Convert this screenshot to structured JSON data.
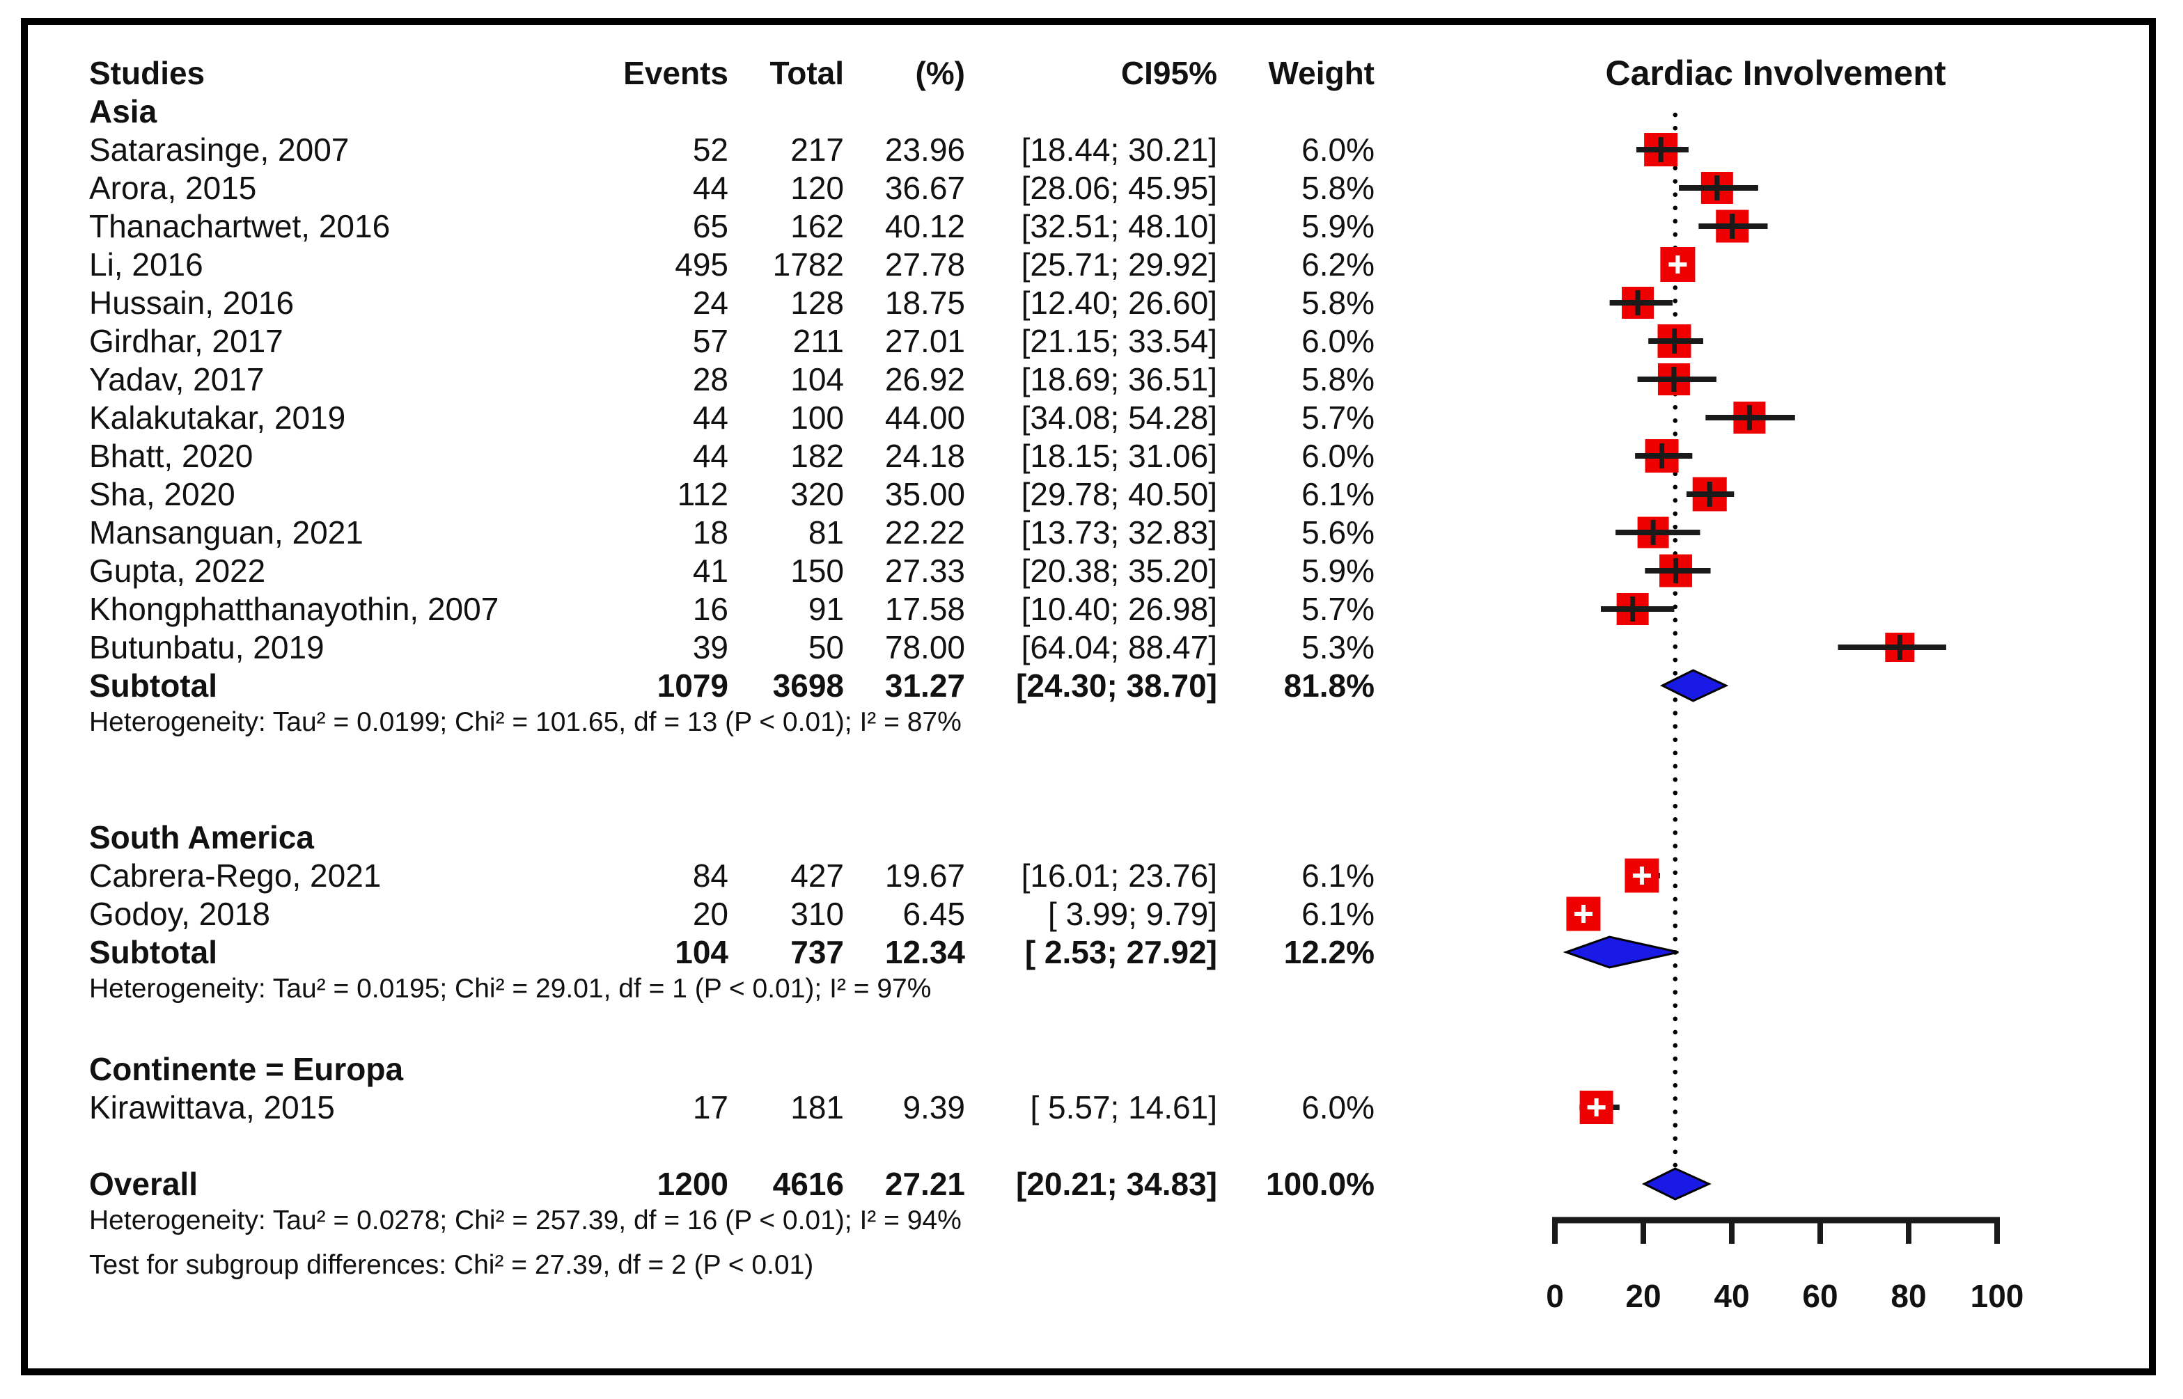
{
  "chart_data": {
    "type": "forest",
    "title": "Cardiac Involvement",
    "columns": {
      "studies": "Studies",
      "events": "Events",
      "total": "Total",
      "pct": "(%)",
      "ci": "CI95%",
      "weight": "Weight"
    },
    "axis": {
      "min": 0,
      "max": 100,
      "ticks": [
        0,
        20,
        40,
        60,
        80,
        100
      ],
      "reference_value": 27.21
    },
    "groups": [
      {
        "label": "Asia",
        "studies": [
          {
            "name": "Satarasinge, 2007",
            "events": "52",
            "total": "217",
            "pct": "23.96",
            "ci": "[18.44; 30.21]",
            "weight": "6.0%",
            "est": 23.96,
            "lo": 18.44,
            "hi": 30.21,
            "w": 6.0
          },
          {
            "name": "Arora, 2015",
            "events": "44",
            "total": "120",
            "pct": "36.67",
            "ci": "[28.06; 45.95]",
            "weight": "5.8%",
            "est": 36.67,
            "lo": 28.06,
            "hi": 45.95,
            "w": 5.8
          },
          {
            "name": "Thanachartwet, 2016",
            "events": "65",
            "total": "162",
            "pct": "40.12",
            "ci": "[32.51; 48.10]",
            "weight": "5.9%",
            "est": 40.12,
            "lo": 32.51,
            "hi": 48.1,
            "w": 5.9
          },
          {
            "name": "Li, 2016",
            "events": "495",
            "total": "1782",
            "pct": "27.78",
            "ci": "[25.71; 29.92]",
            "weight": "6.2%",
            "est": 27.78,
            "lo": 25.71,
            "hi": 29.92,
            "w": 6.2
          },
          {
            "name": "Hussain, 2016",
            "events": "24",
            "total": "128",
            "pct": "18.75",
            "ci": "[12.40; 26.60]",
            "weight": "5.8%",
            "est": 18.75,
            "lo": 12.4,
            "hi": 26.6,
            "w": 5.8
          },
          {
            "name": "Girdhar, 2017",
            "events": "57",
            "total": "211",
            "pct": "27.01",
            "ci": "[21.15; 33.54]",
            "weight": "6.0%",
            "est": 27.01,
            "lo": 21.15,
            "hi": 33.54,
            "w": 6.0
          },
          {
            "name": "Yadav, 2017",
            "events": "28",
            "total": "104",
            "pct": "26.92",
            "ci": "[18.69; 36.51]",
            "weight": "5.8%",
            "est": 26.92,
            "lo": 18.69,
            "hi": 36.51,
            "w": 5.8
          },
          {
            "name": "Kalakutakar, 2019",
            "events": "44",
            "total": "100",
            "pct": "44.00",
            "ci": "[34.08; 54.28]",
            "weight": "5.7%",
            "est": 44.0,
            "lo": 34.08,
            "hi": 54.28,
            "w": 5.7
          },
          {
            "name": "Bhatt, 2020",
            "events": "44",
            "total": "182",
            "pct": "24.18",
            "ci": "[18.15; 31.06]",
            "weight": "6.0%",
            "est": 24.18,
            "lo": 18.15,
            "hi": 31.06,
            "w": 6.0
          },
          {
            "name": "Sha, 2020",
            "events": "112",
            "total": "320",
            "pct": "35.00",
            "ci": "[29.78; 40.50]",
            "weight": "6.1%",
            "est": 35.0,
            "lo": 29.78,
            "hi": 40.5,
            "w": 6.1
          },
          {
            "name": "Mansanguan, 2021",
            "events": "18",
            "total": "81",
            "pct": "22.22",
            "ci": "[13.73; 32.83]",
            "weight": "5.6%",
            "est": 22.22,
            "lo": 13.73,
            "hi": 32.83,
            "w": 5.6
          },
          {
            "name": "Gupta, 2022",
            "events": "41",
            "total": "150",
            "pct": "27.33",
            "ci": "[20.38; 35.20]",
            "weight": "5.9%",
            "est": 27.33,
            "lo": 20.38,
            "hi": 35.2,
            "w": 5.9
          },
          {
            "name": "Khongphatthanayothin, 2007",
            "events": "16",
            "total": "91",
            "pct": "17.58",
            "ci": "[10.40; 26.98]",
            "weight": "5.7%",
            "est": 17.58,
            "lo": 10.4,
            "hi": 26.98,
            "w": 5.7
          },
          {
            "name": "Butunbatu, 2019",
            "events": "39",
            "total": "50",
            "pct": "78.00",
            "ci": "[64.04; 88.47]",
            "weight": "5.3%",
            "est": 78.0,
            "lo": 64.04,
            "hi": 88.47,
            "w": 5.3
          }
        ],
        "subtotal": {
          "name": "Subtotal",
          "events": "1079",
          "total": "3698",
          "pct": "31.27",
          "ci": "[24.30; 38.70]",
          "weight": "81.8%",
          "est": 31.27,
          "lo": 24.3,
          "hi": 38.7
        },
        "heterogeneity": "Heterogeneity: Tau² = 0.0199; Chi² = 101.65, df = 13 (P < 0.01); I² = 87%"
      },
      {
        "label": "South America",
        "studies": [
          {
            "name": "Cabrera-Rego, 2021",
            "events": "84",
            "total": "427",
            "pct": "19.67",
            "ci": "[16.01; 23.76]",
            "weight": "6.1%",
            "est": 19.67,
            "lo": 16.01,
            "hi": 23.76,
            "w": 6.1
          },
          {
            "name": "Godoy, 2018",
            "events": "20",
            "total": "310",
            "pct": "6.45",
            "ci": "[ 3.99; 9.79]",
            "weight": "6.1%",
            "est": 6.45,
            "lo": 3.99,
            "hi": 9.79,
            "w": 6.1
          }
        ],
        "subtotal": {
          "name": "Subtotal",
          "events": "104",
          "total": "737",
          "pct": "12.34",
          "ci": "[ 2.53; 27.92]",
          "weight": "12.2%",
          "est": 12.34,
          "lo": 2.53,
          "hi": 27.92
        },
        "heterogeneity": "Heterogeneity: Tau² = 0.0195; Chi² = 29.01, df = 1 (P < 0.01); I² = 97%"
      },
      {
        "label": "Continente = Europa",
        "studies": [
          {
            "name": "Kirawittava, 2015",
            "events": "17",
            "total": "181",
            "pct": "9.39",
            "ci": "[ 5.57; 14.61]",
            "weight": "6.0%",
            "est": 9.39,
            "lo": 5.57,
            "hi": 14.61,
            "w": 6.0
          }
        ]
      }
    ],
    "overall": {
      "name": "Overall",
      "events": "1200",
      "total": "4616",
      "pct": "27.21",
      "ci": "[20.21; 34.83]",
      "weight": "100.0%",
      "est": 27.21,
      "lo": 20.21,
      "hi": 34.83
    },
    "overall_heterogeneity": "Heterogeneity: Tau² = 0.0278; Chi² = 257.39, df = 16 (P < 0.01); I² = 94%",
    "subgroup_test": "Test for subgroup differences: Chi² = 27.39, df = 2 (P < 0.01)",
    "colors": {
      "square": "#ee0000",
      "diamond": "#1a1ae6",
      "line": "#1a1a1a",
      "text": "#111111"
    }
  }
}
